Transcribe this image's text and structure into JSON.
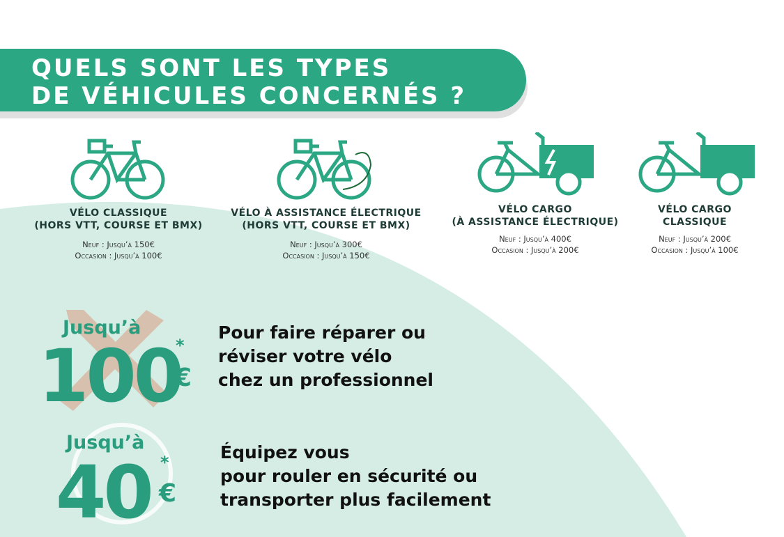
{
  "header": {
    "title": [
      "QUELS SONT LES TYPES",
      "DE VÉHICULES CONCERNÉS ?"
    ]
  },
  "vehicles": [
    {
      "name": [
        "VÉLO CLASSIQUE",
        "(HORS VTT, COURSE ET BMX)"
      ],
      "neuf": "Neuf : Jusqu’à 150€",
      "occasion": "Occasion : Jusqu’à 100€"
    },
    {
      "name": [
        "VÉLO À ASSISTANCE ÉLECTRIQUE",
        "(HORS VTT, COURSE ET BMX)"
      ],
      "neuf": "Neuf : Jusqu’à 300€",
      "occasion": "Occasion : Jusqu’à 150€"
    },
    {
      "name": [
        "VÉLO CARGO",
        "(À ASSISTANCE ÉLECTRIQUE)"
      ],
      "neuf": "Neuf : Jusqu’à 400€",
      "occasion": "Occasion : Jusqu’à 200€"
    },
    {
      "name": [
        "VÉLO CARGO",
        "CLASSIQUE"
      ],
      "neuf": "Neuf : Jusqu’à 200€",
      "occasion": "Occasion : Jusqu’à 100€"
    }
  ],
  "offers": [
    {
      "prefix": "Jusqu’à",
      "amount": "100",
      "star": "*",
      "currency": "€",
      "text": [
        "Pour faire réparer ou",
        "réviser votre vélo",
        "chez un professionnel"
      ]
    },
    {
      "prefix": "Jusqu’à",
      "amount": "40",
      "star": "*",
      "currency": "€",
      "text": [
        "Équipez vous",
        "pour rouler en sécurité ou",
        "transporter plus facilement"
      ]
    }
  ]
}
